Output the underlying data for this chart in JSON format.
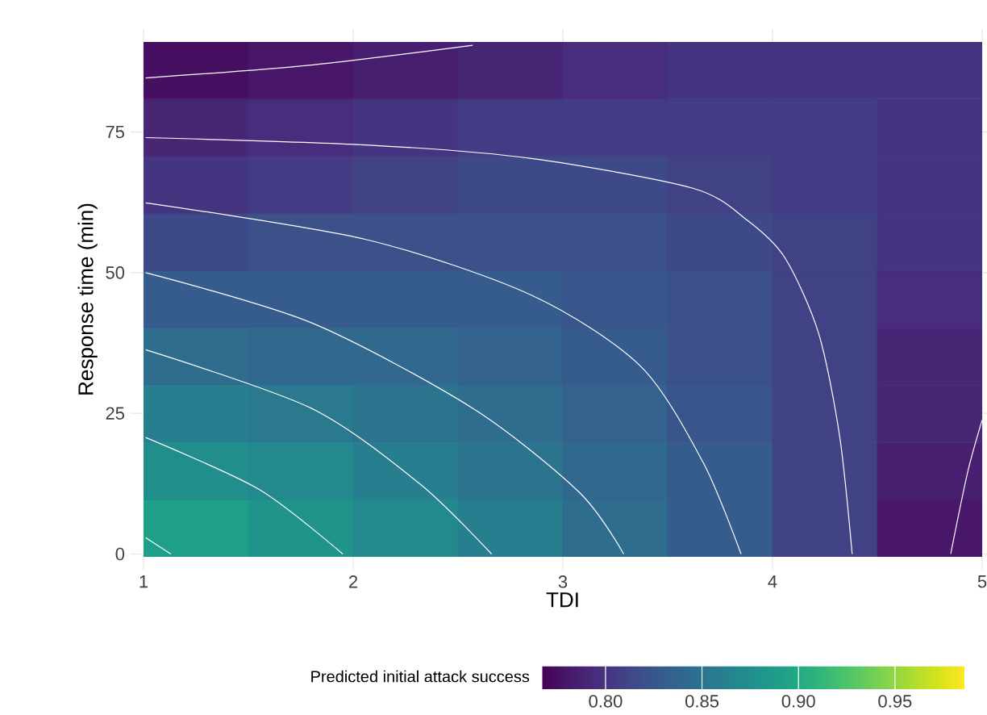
{
  "chart_data": {
    "type": "heatmap",
    "xlabel": "TDI",
    "ylabel": "Response time (min)",
    "clabel": "Predicted initial attack success",
    "cells": [
      [
        0.775,
        0.78,
        0.785,
        0.79,
        0.795,
        0.8,
        0.8,
        0.8
      ],
      [
        0.79,
        0.795,
        0.8,
        0.805,
        0.805,
        0.805,
        0.805,
        0.8
      ],
      [
        0.8,
        0.805,
        0.81,
        0.815,
        0.815,
        0.81,
        0.805,
        0.8
      ],
      [
        0.815,
        0.82,
        0.82,
        0.82,
        0.82,
        0.815,
        0.81,
        0.8
      ],
      [
        0.83,
        0.83,
        0.83,
        0.83,
        0.825,
        0.82,
        0.81,
        0.795
      ],
      [
        0.845,
        0.84,
        0.84,
        0.835,
        0.83,
        0.82,
        0.81,
        0.79
      ],
      [
        0.86,
        0.855,
        0.85,
        0.845,
        0.835,
        0.825,
        0.81,
        0.79
      ],
      [
        0.875,
        0.87,
        0.86,
        0.85,
        0.84,
        0.83,
        0.81,
        0.785
      ],
      [
        0.89,
        0.88,
        0.87,
        0.86,
        0.845,
        0.83,
        0.81,
        0.78
      ]
    ],
    "clim": [
      0.767,
      0.986
    ],
    "cticks": [
      {
        "value": 0.8,
        "label": "0.80"
      },
      {
        "value": 0.85,
        "label": "0.85"
      },
      {
        "value": 0.9,
        "label": "0.90"
      },
      {
        "value": 0.95,
        "label": "0.95"
      }
    ],
    "xlim": [
      1,
      5
    ],
    "ylim": [
      -0.5,
      91
    ],
    "xticks": [
      1,
      2,
      3,
      4,
      5
    ],
    "yticks": [
      0,
      25,
      50,
      75
    ],
    "grid": true,
    "series": [
      {
        "type": "line",
        "color": "#ffffff",
        "x": [
          1.01,
          1.8,
          2.57
        ],
        "values": [
          84.6,
          86.9,
          90.4
        ]
      },
      {
        "type": "line",
        "color": "#ffffff",
        "x": [
          1.01,
          2.06,
          2.85,
          3.62,
          3.88,
          4.06,
          4.22,
          4.32,
          4.38
        ],
        "values": [
          74,
          72.7,
          70.3,
          65,
          59.3,
          52.6,
          39.2,
          21,
          0
        ]
      },
      {
        "type": "line",
        "color": "#ffffff",
        "x": [
          1.01,
          2.06,
          2.85,
          3.37,
          3.67,
          3.85
        ],
        "values": [
          62.4,
          55.9,
          46,
          33.4,
          16.2,
          0
        ]
      },
      {
        "type": "line",
        "color": "#ffffff",
        "x": [
          1.01,
          1.8,
          2.57,
          3.08,
          3.29
        ],
        "values": [
          50,
          41.1,
          25.9,
          10.9,
          0
        ]
      },
      {
        "type": "line",
        "color": "#ffffff",
        "x": [
          1.01,
          1.8,
          2.32,
          2.66
        ],
        "values": [
          36.3,
          25.9,
          12.4,
          0
        ]
      },
      {
        "type": "line",
        "color": "#ffffff",
        "x": [
          1.01,
          1.55,
          1.95
        ],
        "values": [
          20.7,
          11.5,
          0
        ]
      },
      {
        "type": "line",
        "color": "#ffffff",
        "x": [
          1.01,
          1.13
        ],
        "values": [
          2.9,
          0
        ]
      },
      {
        "type": "line",
        "color": "#ffffff",
        "x": [
          4.85,
          4.93,
          5.0
        ],
        "values": [
          0,
          14.4,
          23.8
        ]
      }
    ]
  }
}
